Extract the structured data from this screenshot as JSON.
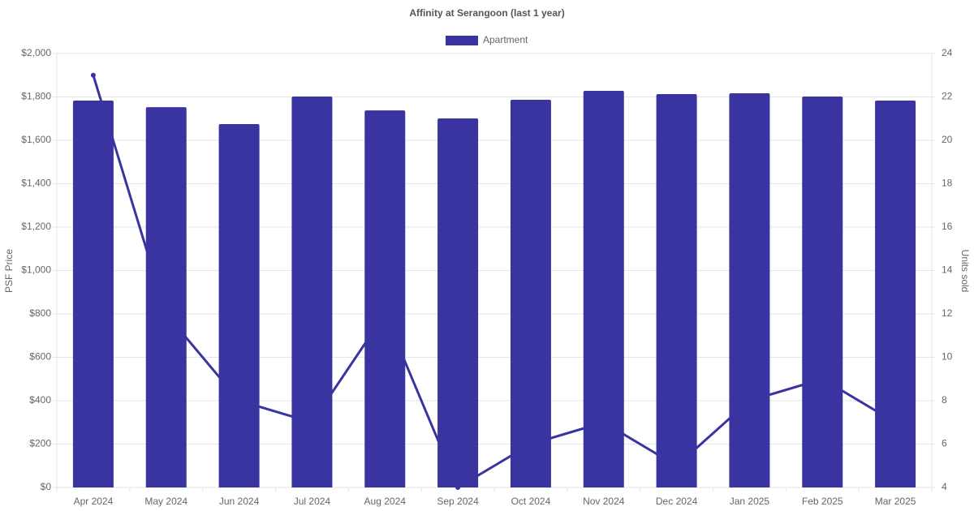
{
  "chart_data": {
    "type": "bar",
    "title": "Affinity at Serangoon (last 1 year)",
    "y_label": "PSF Price",
    "y2_label": "Units sold",
    "categories": [
      "Apr 2024",
      "May 2024",
      "Jun 2024",
      "Jul 2024",
      "Aug 2024",
      "Sep 2024",
      "Oct 2024",
      "Nov 2024",
      "Dec 2024",
      "Jan 2025",
      "Feb 2025",
      "Mar 2025"
    ],
    "series": [
      {
        "name": "Apartment",
        "type": "bar",
        "color": "#3a34a0",
        "values": [
          1783,
          1753,
          1675,
          1802,
          1738,
          1701,
          1787,
          1828,
          1813,
          1817,
          1802,
          1783
        ]
      },
      {
        "type": "line",
        "axis": "y2",
        "color": "#3a34a0",
        "values": [
          23,
          12,
          8,
          7,
          12,
          4,
          6,
          7,
          5,
          8,
          9,
          7
        ]
      }
    ],
    "ylim": [
      0,
      2000
    ],
    "yticks": [
      {
        "value": 0,
        "label": "$0"
      },
      {
        "value": 200,
        "label": "$200"
      },
      {
        "value": 400,
        "label": "$400"
      },
      {
        "value": 600,
        "label": "$600"
      },
      {
        "value": 800,
        "label": "$800"
      },
      {
        "value": 1000,
        "label": "$1,000"
      },
      {
        "value": 1200,
        "label": "$1,200"
      },
      {
        "value": 1400,
        "label": "$1,400"
      },
      {
        "value": 1600,
        "label": "$1,600"
      },
      {
        "value": 1800,
        "label": "$1,800"
      },
      {
        "value": 2000,
        "label": "$2,000"
      }
    ],
    "y2lim": [
      4,
      24
    ],
    "y2ticks": [
      4,
      6,
      8,
      10,
      12,
      14,
      16,
      18,
      20,
      22,
      24
    ],
    "grid": true,
    "legend": "top"
  }
}
